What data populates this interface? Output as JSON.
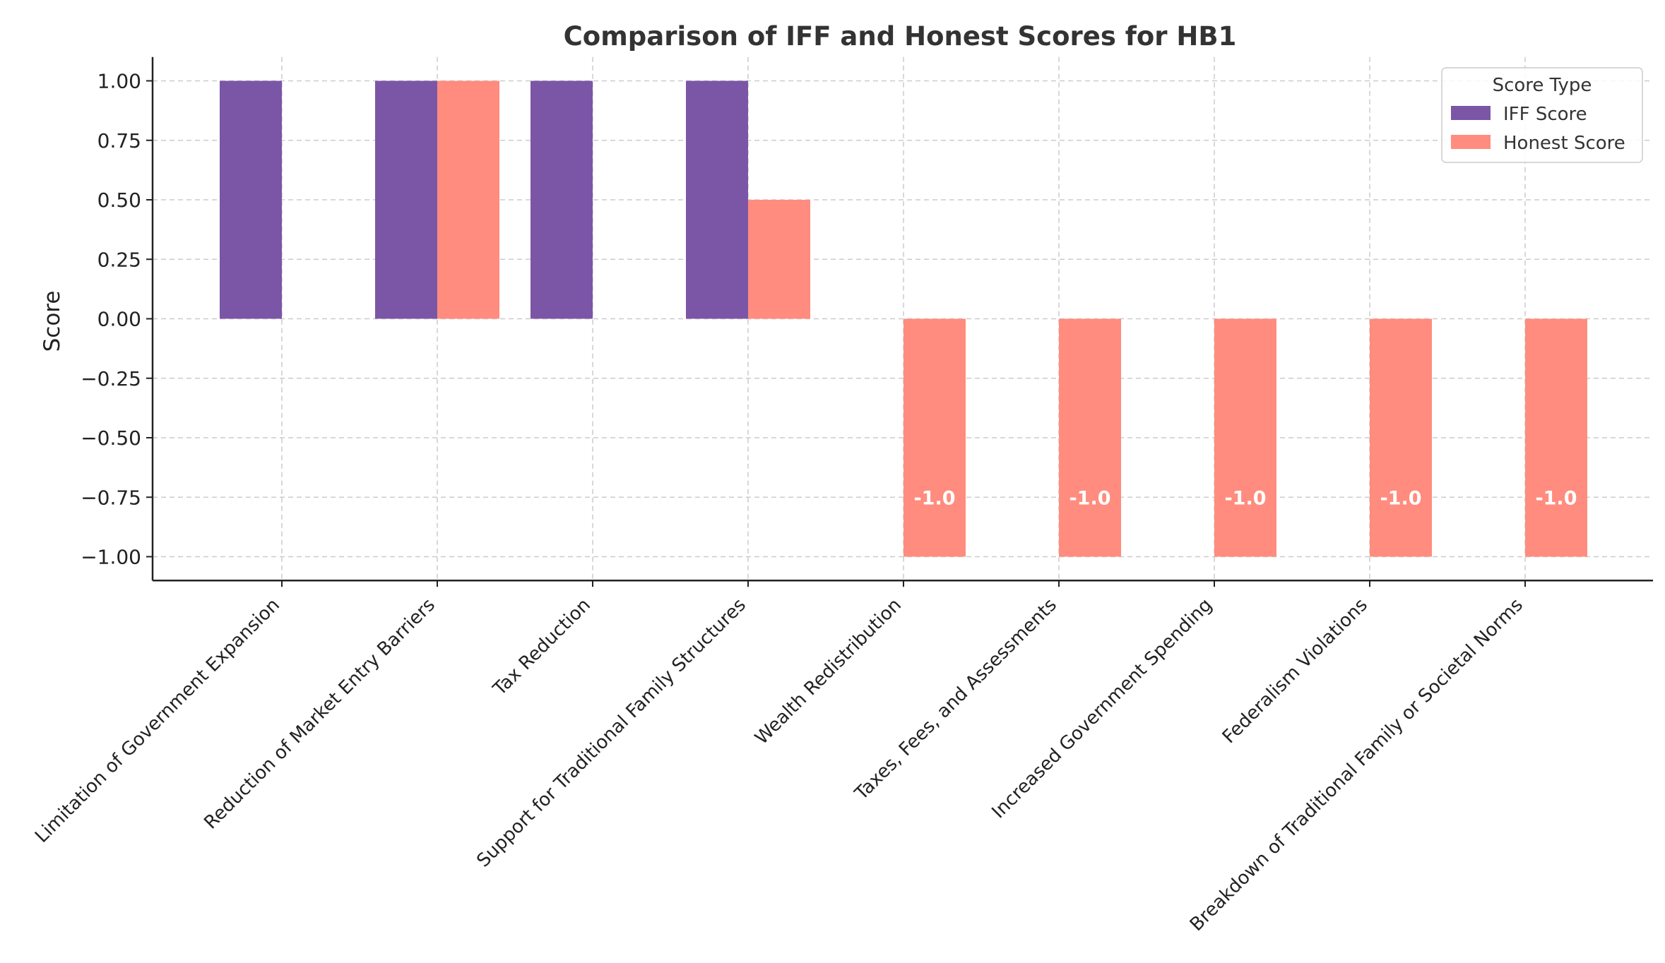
{
  "chart_data": {
    "type": "bar",
    "title": "Comparison of IFF and Honest Scores for HB1",
    "xlabel": "",
    "ylabel": "Score",
    "ylim": [
      -1.1,
      1.1
    ],
    "yticks": [
      "1.00",
      "0.75",
      "0.50",
      "0.25",
      "0.00",
      "−0.25",
      "−0.50",
      "−0.75",
      "−1.00"
    ],
    "ytick_values": [
      1.0,
      0.75,
      0.5,
      0.25,
      0.0,
      -0.25,
      -0.5,
      -0.75,
      -1.0
    ],
    "grid": true,
    "categories": [
      "Limitation of Government Expansion",
      "Reduction of Market Entry Barriers",
      "Tax Reduction",
      "Support for Traditional Family Structures",
      "Wealth Redistribution",
      "Taxes, Fees, and Assessments",
      "Increased Government Spending",
      "Federalism Violations",
      "Breakdown of Traditional Family or Societal Norms"
    ],
    "series": [
      {
        "name": "IFF Score",
        "color": "#7b56a6",
        "values": [
          1,
          1,
          1,
          1,
          0,
          0,
          0,
          0,
          0
        ]
      },
      {
        "name": "Honest Score",
        "color": "#ff8c7e",
        "values": [
          0,
          1,
          0,
          0.5,
          -1,
          -1,
          -1,
          -1,
          -1
        ]
      }
    ],
    "data_labels": [
      "",
      "",
      "",
      "",
      "-1.0",
      "-1.0",
      "-1.0",
      "-1.0",
      "-1.0"
    ],
    "legend": {
      "title": "Score Type",
      "position": "top-right"
    }
  }
}
